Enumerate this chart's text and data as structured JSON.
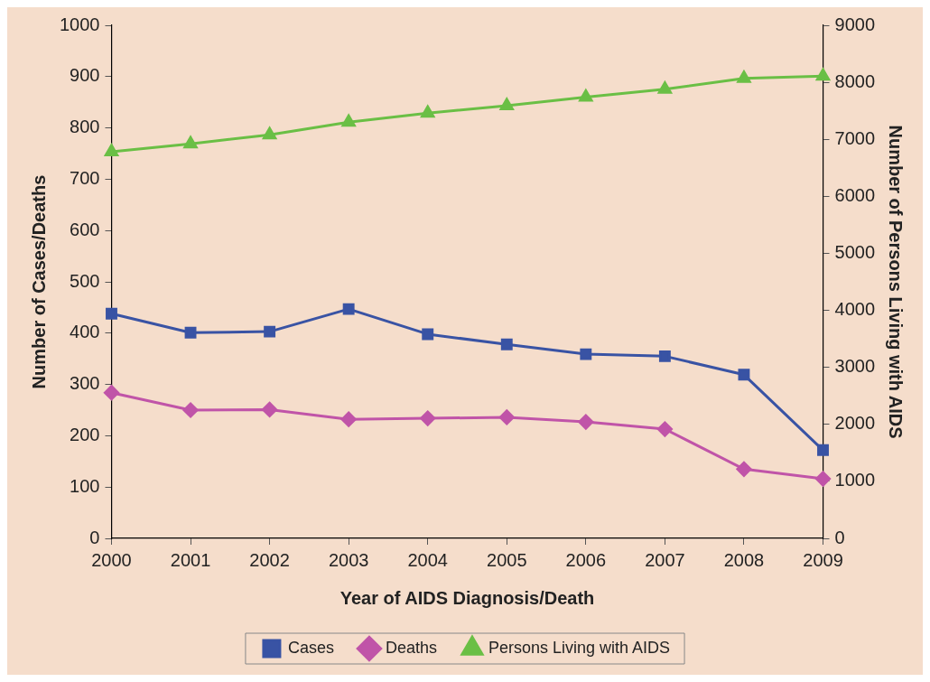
{
  "chart_data": {
    "type": "line",
    "xlabel": "Year of AIDS Diagnosis/Death",
    "ylabel": "Number of Cases/Deaths",
    "y2label": "Number of Persons Living with AIDS",
    "categories": [
      "2000",
      "2001",
      "2002",
      "2003",
      "2004",
      "2005",
      "2006",
      "2007",
      "2008",
      "2009"
    ],
    "series": [
      {
        "name": "Cases",
        "color": "#3953a4",
        "marker": "square",
        "values": [
          438,
          401,
          403,
          447,
          398,
          378,
          359,
          355,
          319,
          172
        ]
      },
      {
        "name": "Deaths",
        "color": "#c054a8",
        "marker": "diamond",
        "values": [
          284,
          250,
          251,
          232,
          234,
          236,
          227,
          213,
          135,
          116
        ]
      },
      {
        "name": "Persons Living with AIDS",
        "color": "#6abf45",
        "marker": "triangle",
        "axis": "y2",
        "values": [
          6780,
          6920,
          7080,
          7300,
          7460,
          7590,
          7740,
          7880,
          8070,
          8110
        ]
      }
    ],
    "ylim": [
      0,
      1000
    ],
    "yticks": [
      0,
      100,
      200,
      300,
      400,
      500,
      600,
      700,
      800,
      900,
      1000
    ],
    "y2lim": [
      0,
      9000
    ],
    "y2ticks": [
      0,
      1000,
      2000,
      3000,
      4000,
      5000,
      6000,
      7000,
      8000,
      9000
    ],
    "grid": false,
    "legend": "bottom"
  }
}
